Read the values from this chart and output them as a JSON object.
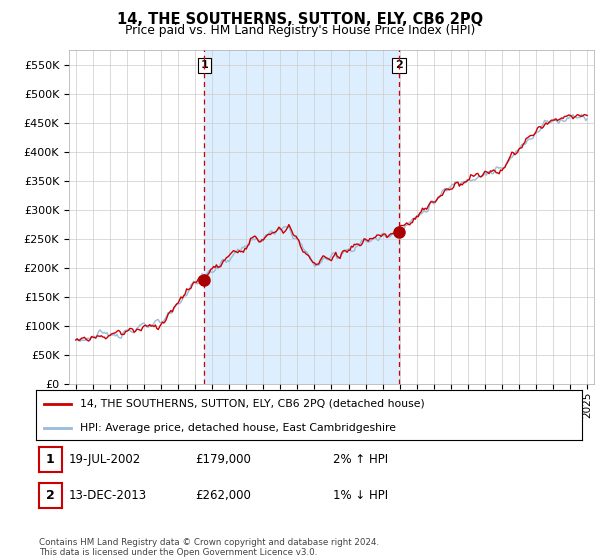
{
  "title": "14, THE SOUTHERNS, SUTTON, ELY, CB6 2PQ",
  "subtitle": "Price paid vs. HM Land Registry's House Price Index (HPI)",
  "ylabel_ticks": [
    "£0",
    "£50K",
    "£100K",
    "£150K",
    "£200K",
    "£250K",
    "£300K",
    "£350K",
    "£400K",
    "£450K",
    "£500K",
    "£550K"
  ],
  "ytick_values": [
    0,
    50000,
    100000,
    150000,
    200000,
    250000,
    300000,
    350000,
    400000,
    450000,
    500000,
    550000
  ],
  "ylim": [
    0,
    575000
  ],
  "transaction1": {
    "date": "19-JUL-2002",
    "price": 179000,
    "hpi_change": "2% ↑ HPI",
    "label": "1",
    "x_year": 2002.54
  },
  "transaction2": {
    "date": "13-DEC-2013",
    "price": 262000,
    "hpi_change": "1% ↓ HPI",
    "label": "2",
    "x_year": 2013.96
  },
  "line_color_property": "#cc0000",
  "line_color_hpi": "#99bbdd",
  "dot_color": "#aa0000",
  "vline_color": "#cc0000",
  "shade_color": "#ddeeff",
  "legend_label1": "14, THE SOUTHERNS, SUTTON, ELY, CB6 2PQ (detached house)",
  "legend_label2": "HPI: Average price, detached house, East Cambridgeshire",
  "footer": "Contains HM Land Registry data © Crown copyright and database right 2024.\nThis data is licensed under the Open Government Licence v3.0.",
  "table_rows": [
    {
      "num": "1",
      "date": "19-JUL-2002",
      "price": "£179,000",
      "hpi": "2% ↑ HPI"
    },
    {
      "num": "2",
      "date": "13-DEC-2013",
      "price": "£262,000",
      "hpi": "1% ↓ HPI"
    }
  ],
  "background_color": "#ffffff",
  "grid_color": "#cccccc",
  "xlim_start": 1994.6,
  "xlim_end": 2025.4
}
